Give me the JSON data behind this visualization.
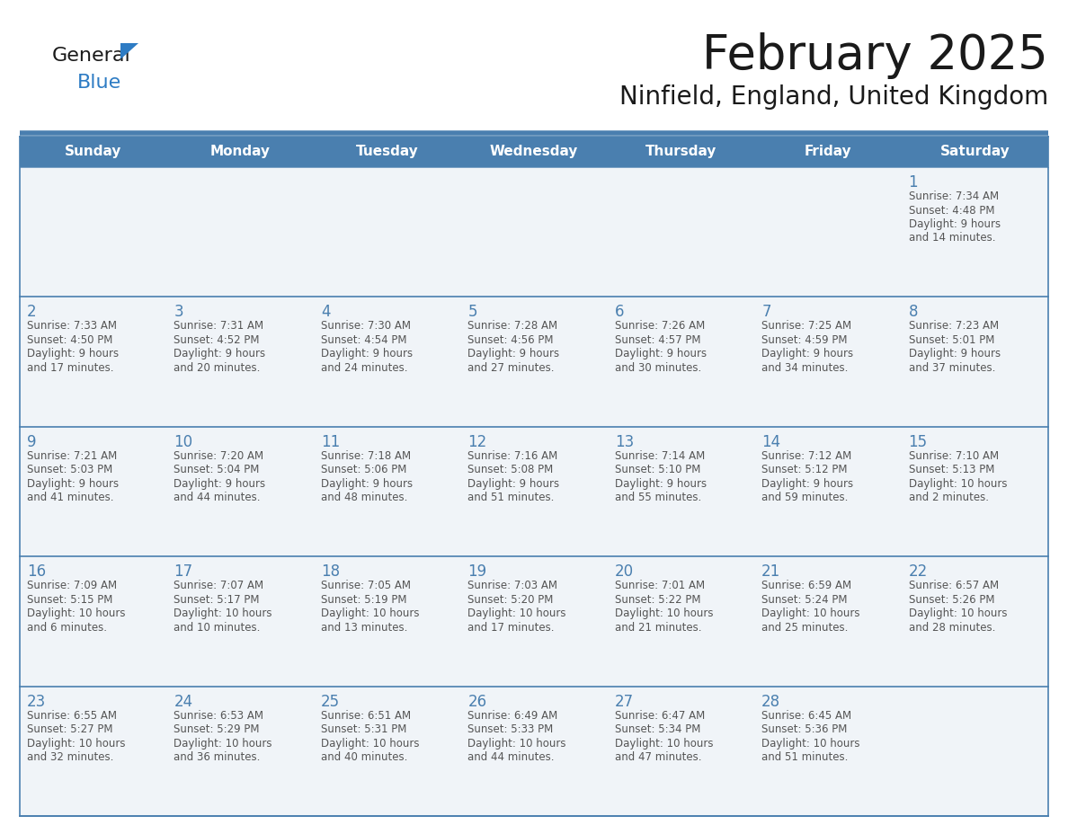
{
  "title": "February 2025",
  "subtitle": "Ninfield, England, United Kingdom",
  "header_bg": "#4a7faf",
  "header_text_color": "#ffffff",
  "day_names": [
    "Sunday",
    "Monday",
    "Tuesday",
    "Wednesday",
    "Thursday",
    "Friday",
    "Saturday"
  ],
  "cell_bg": "#f0f4f8",
  "grid_line_color": "#4a7faf",
  "number_color": "#4a7faf",
  "text_color": "#555555",
  "title_color": "#1a1a1a",
  "logo_general_color": "#1a1a1a",
  "logo_blue_color": "#2e7cc4",
  "logo_triangle_color": "#2e7cc4",
  "weeks": [
    [
      null,
      null,
      null,
      null,
      null,
      null,
      1
    ],
    [
      2,
      3,
      4,
      5,
      6,
      7,
      8
    ],
    [
      9,
      10,
      11,
      12,
      13,
      14,
      15
    ],
    [
      16,
      17,
      18,
      19,
      20,
      21,
      22
    ],
    [
      23,
      24,
      25,
      26,
      27,
      28,
      null
    ]
  ],
  "day_data": {
    "1": {
      "sunrise": "7:34 AM",
      "sunset": "4:48 PM",
      "daylight": "9 hours",
      "daylight2": "and 14 minutes."
    },
    "2": {
      "sunrise": "7:33 AM",
      "sunset": "4:50 PM",
      "daylight": "9 hours",
      "daylight2": "and 17 minutes."
    },
    "3": {
      "sunrise": "7:31 AM",
      "sunset": "4:52 PM",
      "daylight": "9 hours",
      "daylight2": "and 20 minutes."
    },
    "4": {
      "sunrise": "7:30 AM",
      "sunset": "4:54 PM",
      "daylight": "9 hours",
      "daylight2": "and 24 minutes."
    },
    "5": {
      "sunrise": "7:28 AM",
      "sunset": "4:56 PM",
      "daylight": "9 hours",
      "daylight2": "and 27 minutes."
    },
    "6": {
      "sunrise": "7:26 AM",
      "sunset": "4:57 PM",
      "daylight": "9 hours",
      "daylight2": "and 30 minutes."
    },
    "7": {
      "sunrise": "7:25 AM",
      "sunset": "4:59 PM",
      "daylight": "9 hours",
      "daylight2": "and 34 minutes."
    },
    "8": {
      "sunrise": "7:23 AM",
      "sunset": "5:01 PM",
      "daylight": "9 hours",
      "daylight2": "and 37 minutes."
    },
    "9": {
      "sunrise": "7:21 AM",
      "sunset": "5:03 PM",
      "daylight": "9 hours",
      "daylight2": "and 41 minutes."
    },
    "10": {
      "sunrise": "7:20 AM",
      "sunset": "5:04 PM",
      "daylight": "9 hours",
      "daylight2": "and 44 minutes."
    },
    "11": {
      "sunrise": "7:18 AM",
      "sunset": "5:06 PM",
      "daylight": "9 hours",
      "daylight2": "and 48 minutes."
    },
    "12": {
      "sunrise": "7:16 AM",
      "sunset": "5:08 PM",
      "daylight": "9 hours",
      "daylight2": "and 51 minutes."
    },
    "13": {
      "sunrise": "7:14 AM",
      "sunset": "5:10 PM",
      "daylight": "9 hours",
      "daylight2": "and 55 minutes."
    },
    "14": {
      "sunrise": "7:12 AM",
      "sunset": "5:12 PM",
      "daylight": "9 hours",
      "daylight2": "and 59 minutes."
    },
    "15": {
      "sunrise": "7:10 AM",
      "sunset": "5:13 PM",
      "daylight": "10 hours",
      "daylight2": "and 2 minutes."
    },
    "16": {
      "sunrise": "7:09 AM",
      "sunset": "5:15 PM",
      "daylight": "10 hours",
      "daylight2": "and 6 minutes."
    },
    "17": {
      "sunrise": "7:07 AM",
      "sunset": "5:17 PM",
      "daylight": "10 hours",
      "daylight2": "and 10 minutes."
    },
    "18": {
      "sunrise": "7:05 AM",
      "sunset": "5:19 PM",
      "daylight": "10 hours",
      "daylight2": "and 13 minutes."
    },
    "19": {
      "sunrise": "7:03 AM",
      "sunset": "5:20 PM",
      "daylight": "10 hours",
      "daylight2": "and 17 minutes."
    },
    "20": {
      "sunrise": "7:01 AM",
      "sunset": "5:22 PM",
      "daylight": "10 hours",
      "daylight2": "and 21 minutes."
    },
    "21": {
      "sunrise": "6:59 AM",
      "sunset": "5:24 PM",
      "daylight": "10 hours",
      "daylight2": "and 25 minutes."
    },
    "22": {
      "sunrise": "6:57 AM",
      "sunset": "5:26 PM",
      "daylight": "10 hours",
      "daylight2": "and 28 minutes."
    },
    "23": {
      "sunrise": "6:55 AM",
      "sunset": "5:27 PM",
      "daylight": "10 hours",
      "daylight2": "and 32 minutes."
    },
    "24": {
      "sunrise": "6:53 AM",
      "sunset": "5:29 PM",
      "daylight": "10 hours",
      "daylight2": "and 36 minutes."
    },
    "25": {
      "sunrise": "6:51 AM",
      "sunset": "5:31 PM",
      "daylight": "10 hours",
      "daylight2": "and 40 minutes."
    },
    "26": {
      "sunrise": "6:49 AM",
      "sunset": "5:33 PM",
      "daylight": "10 hours",
      "daylight2": "and 44 minutes."
    },
    "27": {
      "sunrise": "6:47 AM",
      "sunset": "5:34 PM",
      "daylight": "10 hours",
      "daylight2": "and 47 minutes."
    },
    "28": {
      "sunrise": "6:45 AM",
      "sunset": "5:36 PM",
      "daylight": "10 hours",
      "daylight2": "and 51 minutes."
    }
  }
}
